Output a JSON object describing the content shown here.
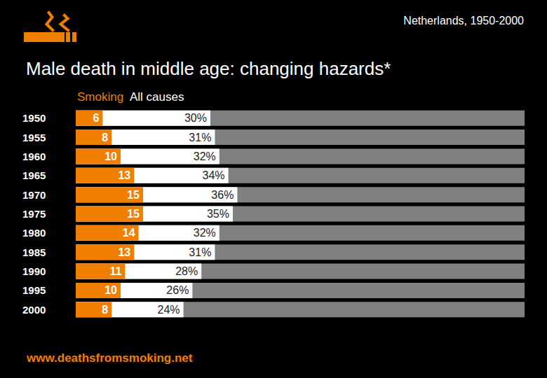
{
  "chart_data": {
    "type": "bar",
    "orientation": "horizontal",
    "title": "Male death in middle age: changing hazards*",
    "subtitle": "Netherlands, 1950-2000",
    "annotations": [
      "www.deathsfromsmoking.net"
    ],
    "categories": [
      "1950",
      "1955",
      "1960",
      "1965",
      "1970",
      "1975",
      "1980",
      "1985",
      "1990",
      "1995",
      "2000"
    ],
    "series": [
      {
        "name": "Smoking",
        "color": "#f07f00",
        "values": [
          6,
          8,
          10,
          13,
          15,
          15,
          14,
          13,
          11,
          10,
          8
        ]
      },
      {
        "name": "All causes",
        "color": "#ffffff",
        "values": [
          30,
          31,
          32,
          34,
          36,
          35,
          32,
          31,
          28,
          26,
          24
        ],
        "value_labels": [
          "30%",
          "31%",
          "32%",
          "34%",
          "36%",
          "35%",
          "32%",
          "31%",
          "28%",
          "26%",
          "24%"
        ]
      }
    ],
    "xlim": [
      0,
      100
    ],
    "data_labels": true,
    "tick_labels": "y",
    "grid": false,
    "stacked": false
  }
}
